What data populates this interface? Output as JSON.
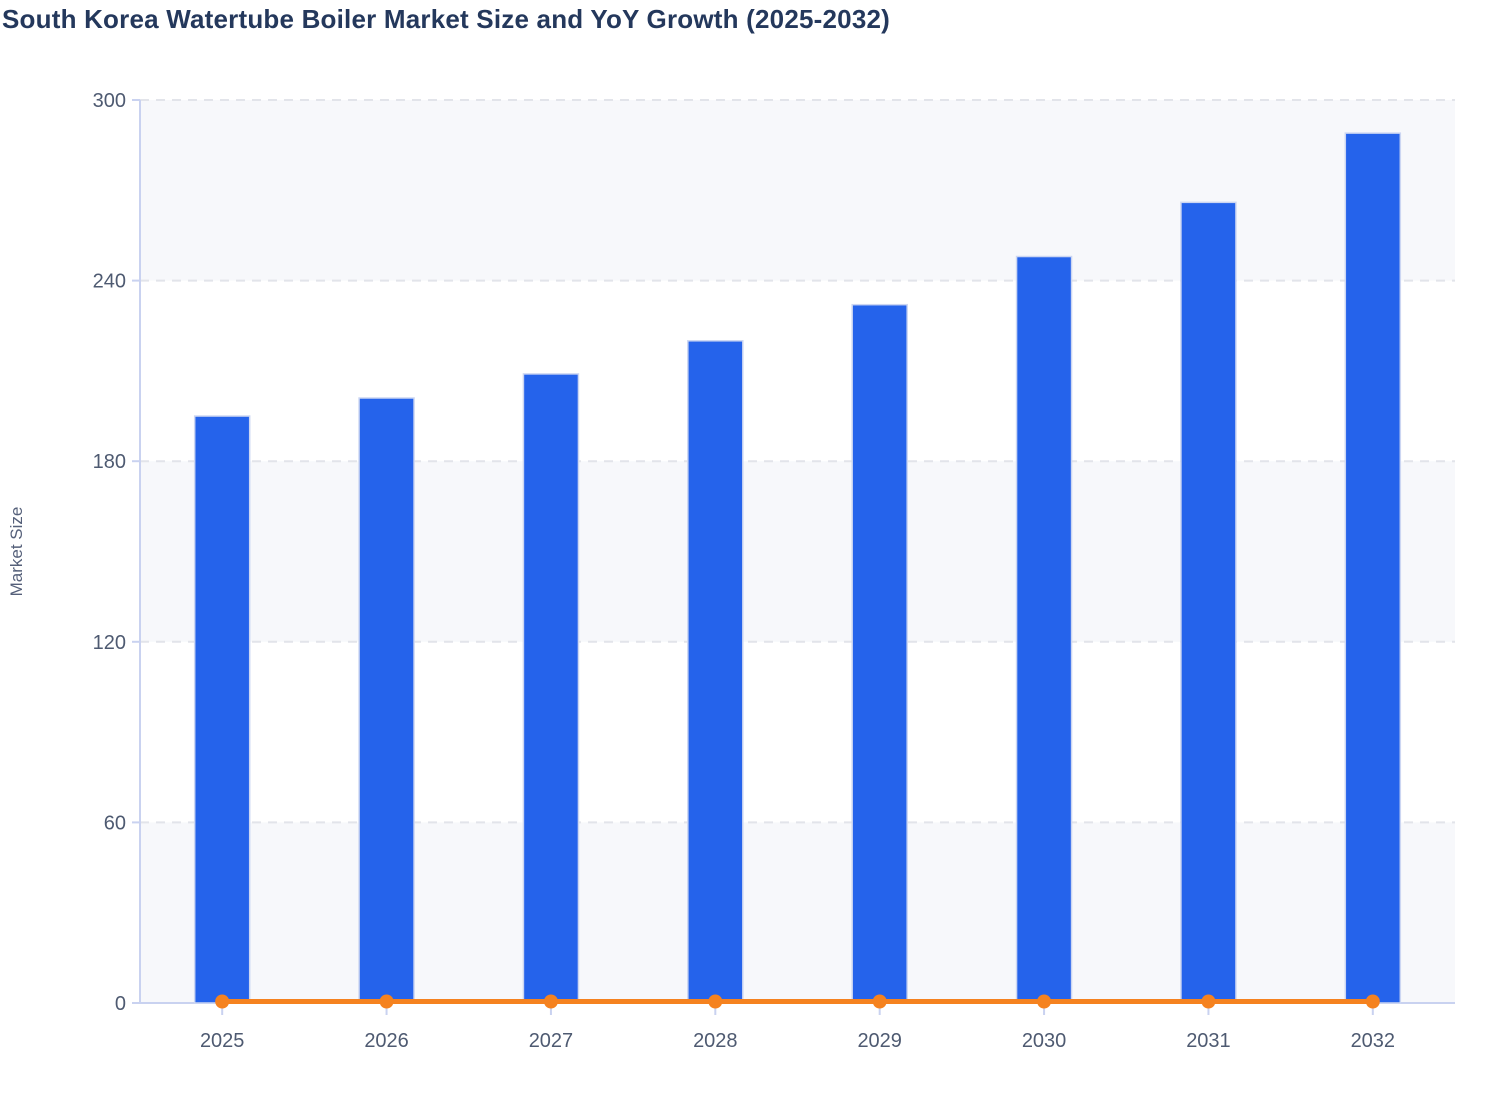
{
  "title": "South Korea Watertube Boiler Market Size and YoY Growth (2025-2032)",
  "chart_data": {
    "type": "bar",
    "combo_types": [
      "bar",
      "line"
    ],
    "title": "South Korea Watertube Boiler Market Size and YoY Growth (2025-2032)",
    "xlabel": "",
    "ylabel": "Market Size",
    "categories": [
      "2025",
      "2026",
      "2027",
      "2028",
      "2029",
      "2030",
      "2031",
      "2032"
    ],
    "series": [
      {
        "name": "Market Size",
        "type": "bar",
        "color": "#2563eb",
        "values": [
          195,
          201,
          209,
          220,
          232,
          248,
          266,
          289
        ]
      },
      {
        "name": "YoY Growth",
        "type": "line",
        "color": "#f5821f",
        "values": [
          0,
          0,
          0,
          0,
          0,
          0,
          0,
          0
        ],
        "note": "line drawn flat along the 0 baseline with a round marker at each year"
      }
    ],
    "ylim": [
      0,
      300
    ],
    "yticks": [
      0,
      60,
      120,
      180,
      240,
      300
    ],
    "legend": "none",
    "grid": "dashed horizontal gridlines with alternating horizontal shaded bands",
    "colors": {
      "bar_fill": "#2563eb",
      "bar_stroke": "#ccd6f2",
      "line": "#f5821f",
      "axis": "#c9d2f0",
      "gridline": "#e2e4ea",
      "band": "#f7f8fb",
      "tick_label": "#4e5a71",
      "axis_title": "#55607a",
      "title": "#24385c"
    }
  }
}
